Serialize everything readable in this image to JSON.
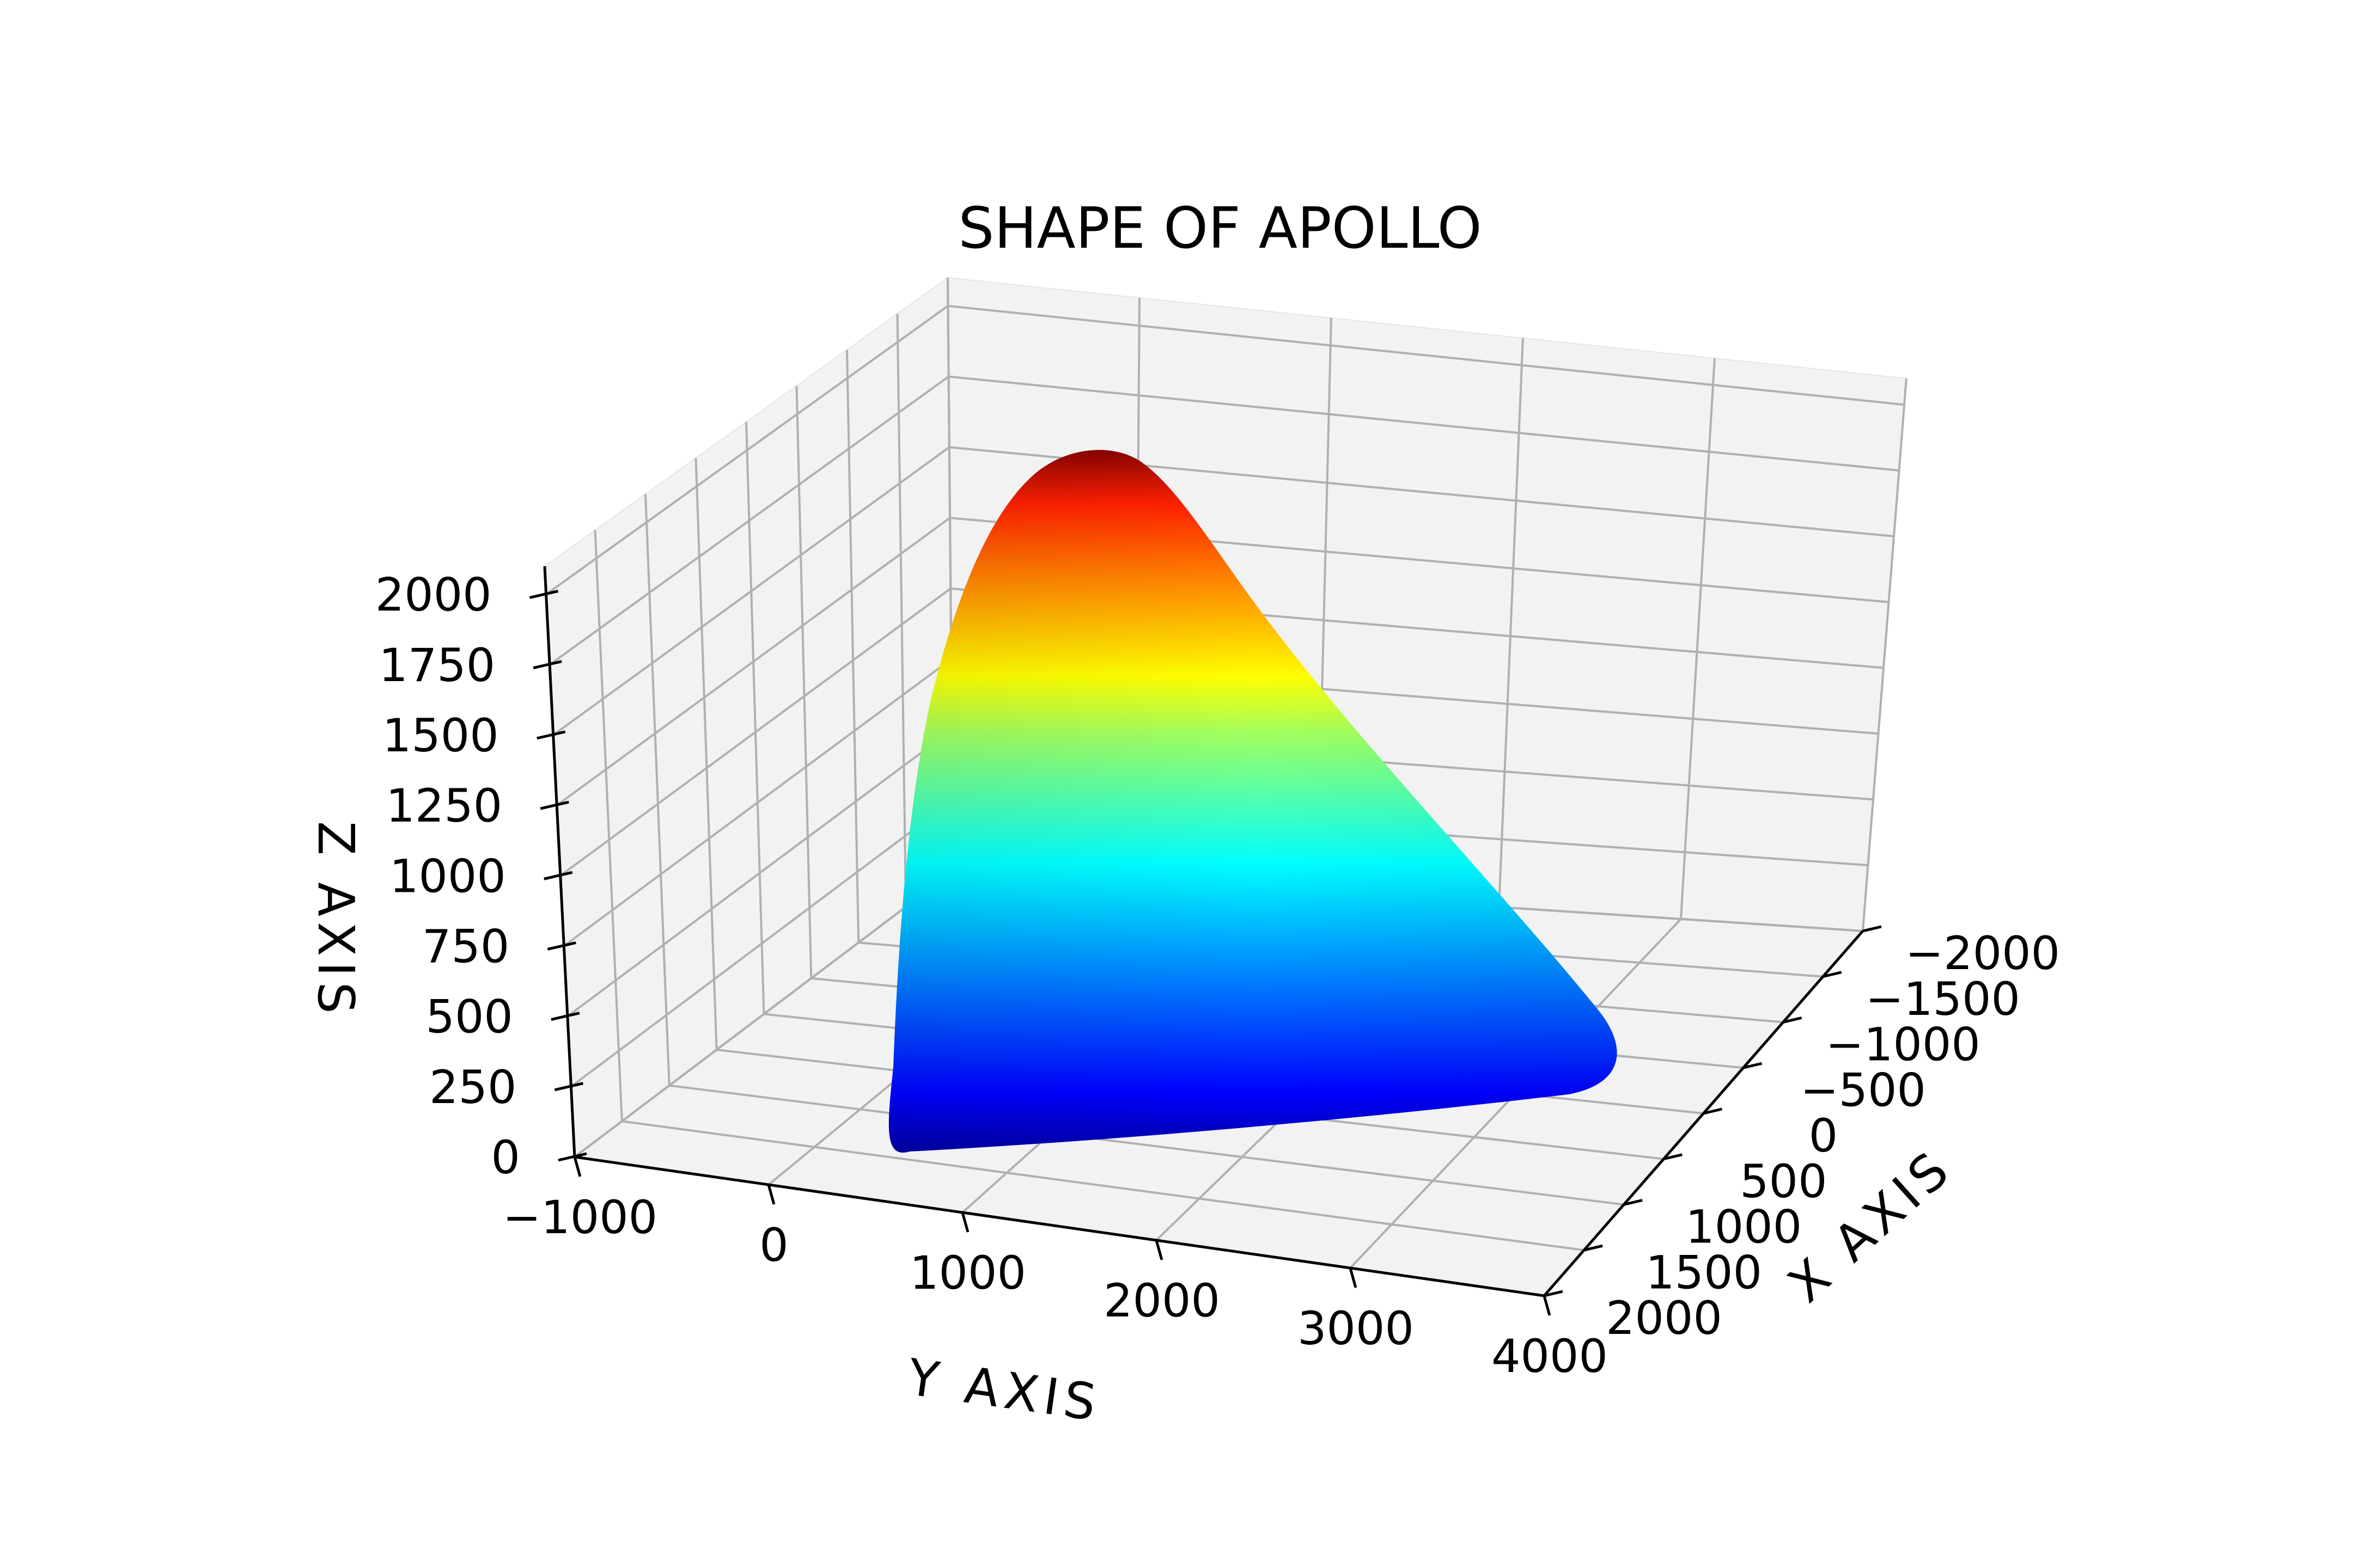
{
  "chart_data": {
    "type": "surface3d",
    "title": "SHAPE OF APOLLO",
    "xlabel": "X AXIS",
    "ylabel": "Y AXIS",
    "zlabel": "Z AXIS",
    "xlim": [
      -2000,
      2000
    ],
    "ylim": [
      -1000,
      4000
    ],
    "zlim": [
      0,
      2100
    ],
    "xticks": [
      -2000,
      -1500,
      -1000,
      -500,
      0,
      500,
      1000,
      1500,
      2000
    ],
    "yticks": [
      -1000,
      0,
      1000,
      2000,
      3000,
      4000
    ],
    "zticks": [
      0,
      250,
      500,
      750,
      1000,
      1250,
      1500,
      1750,
      2000
    ],
    "grid": true,
    "colormap": "jet",
    "colors": {
      "pane": "#f2f2f2",
      "grid": "#b0b0b0",
      "axis": "#000000"
    },
    "surface": {
      "apex": {
        "x": 0,
        "y": 0,
        "z": 2050
      },
      "base_y_range": [
        0,
        3600
      ],
      "base_half_width_x": 1700,
      "z_range": [
        0,
        2050
      ]
    }
  }
}
